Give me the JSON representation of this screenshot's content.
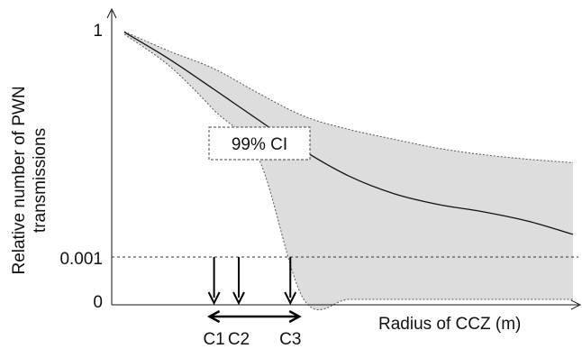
{
  "chart_data": {
    "type": "area",
    "xlabel": "Radius of CCZ (m)",
    "ylabel_lines": [
      "Relative number of PWN",
      "transmissions"
    ],
    "yticks": [
      {
        "label": "1",
        "value": 1.0
      },
      {
        "label": "0.001",
        "value": 0.001
      },
      {
        "label": "0",
        "value": 0.0
      }
    ],
    "axis_arrows": true,
    "threshold": {
      "value": 0.001,
      "style": "dashed"
    },
    "band_label": "99% CI",
    "series": [
      {
        "role": "central-estimate",
        "x": [
          0.0,
          0.1,
          0.2,
          0.3,
          0.4,
          0.5,
          0.6,
          0.7,
          0.8,
          0.9,
          1.0
        ],
        "y": [
          0.98,
          0.43,
          0.17,
          0.066,
          0.026,
          0.012,
          0.007,
          0.005,
          0.004,
          0.003,
          0.002
        ]
      },
      {
        "role": "ci-upper",
        "x": [
          0.0,
          0.1,
          0.2,
          0.3,
          0.4,
          0.5,
          0.6,
          0.7,
          0.8,
          0.9,
          1.0
        ],
        "y": [
          1.0,
          0.55,
          0.32,
          0.15,
          0.075,
          0.05,
          0.037,
          0.028,
          0.023,
          0.02,
          0.018
        ]
      },
      {
        "role": "ci-lower",
        "x": [
          0.0,
          0.1,
          0.2,
          0.3,
          0.4,
          0.5,
          0.6,
          0.7,
          0.8,
          0.9,
          1.0
        ],
        "y": [
          0.92,
          0.35,
          0.09,
          0.02,
          0.0,
          0.0,
          0.0,
          0.0,
          0.0,
          0.0,
          0.0
        ]
      }
    ],
    "markers": [
      {
        "label": "C1",
        "x": 0.2
      },
      {
        "label": "C2",
        "x": 0.255
      },
      {
        "label": "C3",
        "x": 0.37
      }
    ],
    "range_arrow": {
      "from": 0.19,
      "to": 0.39
    },
    "xlim": [
      0,
      1.0
    ],
    "ylim": [
      0,
      1.0
    ],
    "grid": false,
    "colors": {
      "band_fill": "#dddddd",
      "band_edge": "#555555",
      "line": "#111111",
      "axis": "#111111"
    }
  }
}
